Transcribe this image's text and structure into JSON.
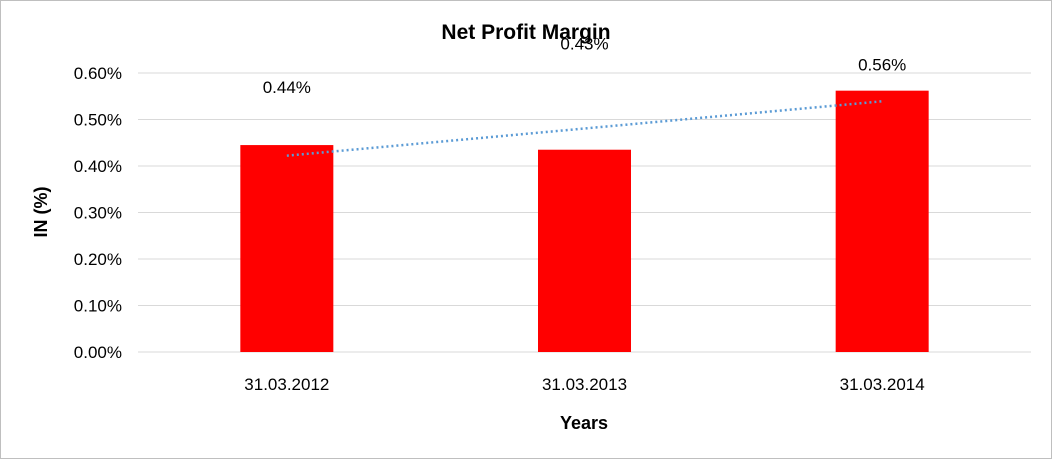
{
  "chart_data": {
    "type": "bar",
    "title": "Net Profit Margin",
    "xlabel": "Years",
    "ylabel": "IN (%)",
    "categories": [
      "31.03.2012",
      "31.03.2013",
      "31.03.2014"
    ],
    "values": [
      0.445,
      0.435,
      0.562
    ],
    "data_labels": [
      "0.44%",
      "0.43%",
      "0.56%"
    ],
    "ylim": [
      0,
      0.6
    ],
    "yticks": [
      {
        "value": 0.0,
        "label": "0.00%"
      },
      {
        "value": 0.1,
        "label": "0.10%"
      },
      {
        "value": 0.2,
        "label": "0.20%"
      },
      {
        "value": 0.3,
        "label": "0.30%"
      },
      {
        "value": 0.4,
        "label": "0.40%"
      },
      {
        "value": 0.5,
        "label": "0.50%"
      },
      {
        "value": 0.6,
        "label": "0.60%"
      }
    ],
    "trendline": {
      "type": "linear",
      "style": "dotted",
      "color": "#5b9bd5"
    },
    "grid": true,
    "legend": "none",
    "bar_color": "#ff0000",
    "gridline_color": "#d9d9d9"
  }
}
